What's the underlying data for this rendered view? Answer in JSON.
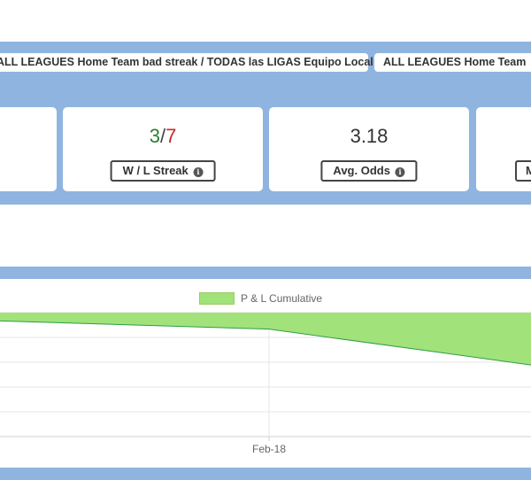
{
  "tags": [
    "ALL LEAGUES Home Team bad streak / TODAS las LIGAS Equipo Local mala racha",
    "ALL LEAGUES Home Team"
  ],
  "stats": {
    "wl_streak": {
      "wins": "3",
      "separator": "/",
      "losses": "7",
      "label": "W / L Streak"
    },
    "avg_odds": {
      "value": "3.18",
      "label": "Avg. Odds"
    },
    "partial_label_right": "M"
  },
  "icons": {
    "info": "info-circle-icon"
  },
  "colors": {
    "band": "#8fb4e0",
    "area_fill": "#a1e27a",
    "area_line": "#2e9e48",
    "win": "#2e7d32",
    "loss": "#c62828"
  },
  "chart_data": {
    "type": "area",
    "legend": [
      "P & L Cumulative"
    ],
    "x_ticks": [
      "Feb-18"
    ],
    "series": [
      {
        "name": "P & L Cumulative",
        "values": [
          -0.3,
          -0.6,
          -1.9
        ]
      }
    ],
    "ylim": [
      -4.5,
      0
    ],
    "grid": true
  }
}
